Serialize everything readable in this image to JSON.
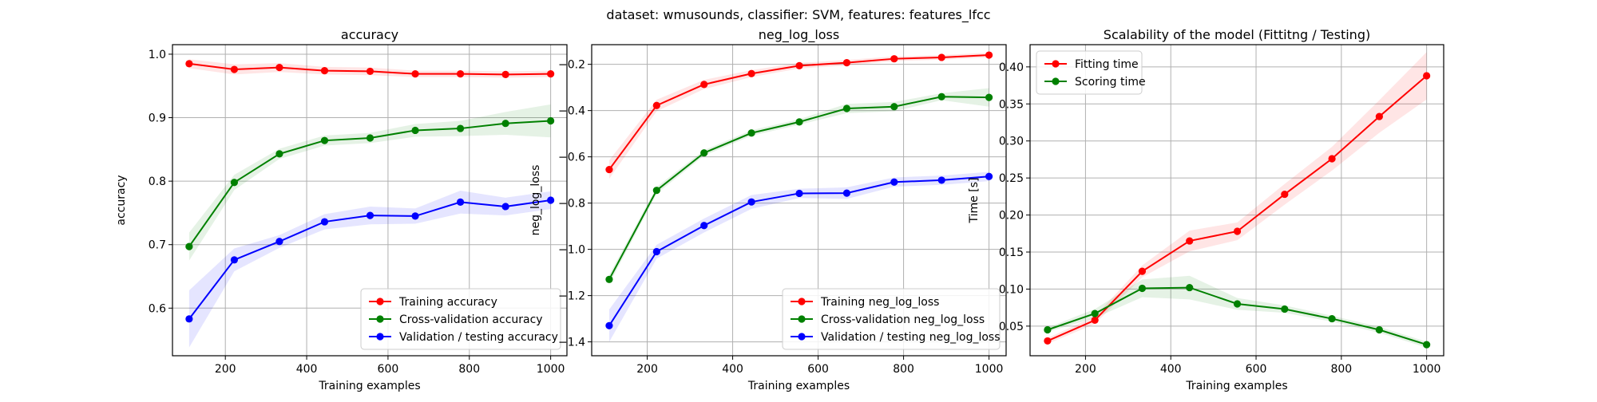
{
  "figure": {
    "suptitle": "dataset: wmusounds, classifier: SVM, features: features_lfcc"
  },
  "colors": {
    "train": "#ff0000",
    "cv": "#008000",
    "test": "#0000ff",
    "grid": "#b0b0b0"
  },
  "chart_data": [
    {
      "type": "line",
      "title": "accuracy",
      "xlabel": "Training examples",
      "ylabel": "accuracy",
      "xlim": [
        70,
        1040
      ],
      "ylim": [
        0.525,
        1.015
      ],
      "xticks": [
        200,
        400,
        600,
        800,
        1000
      ],
      "yticks": [
        0.6,
        0.7,
        0.8,
        0.9,
        1.0
      ],
      "ytick_labels": [
        "0.6",
        "0.7",
        "0.8",
        "0.9",
        "1.0"
      ],
      "grid": true,
      "legend": "lower right",
      "x": [
        111,
        222,
        333,
        444,
        556,
        667,
        778,
        889,
        1000
      ],
      "series": [
        {
          "name": "Training accuracy",
          "color": "#ff0000",
          "values": [
            0.985,
            0.976,
            0.979,
            0.974,
            0.973,
            0.969,
            0.969,
            0.968,
            0.969
          ],
          "band": [
            0.007,
            0.008,
            0.007,
            0.006,
            0.006,
            0.005,
            0.005,
            0.005,
            0.005
          ]
        },
        {
          "name": "Cross-validation accuracy",
          "color": "#008000",
          "values": [
            0.697,
            0.798,
            0.843,
            0.864,
            0.868,
            0.88,
            0.883,
            0.891,
            0.895
          ],
          "band": [
            0.022,
            0.012,
            0.008,
            0.008,
            0.008,
            0.01,
            0.012,
            0.018,
            0.026
          ]
        },
        {
          "name": "Validation / testing accuracy",
          "color": "#0000ff",
          "values": [
            0.583,
            0.676,
            0.705,
            0.736,
            0.746,
            0.745,
            0.767,
            0.76,
            0.77
          ],
          "band": [
            0.045,
            0.018,
            0.01,
            0.012,
            0.014,
            0.012,
            0.018,
            0.014,
            0.014
          ]
        }
      ]
    },
    {
      "type": "line",
      "title": "neg_log_loss",
      "xlabel": "Training examples",
      "ylabel": "neg_log_loss",
      "xlim": [
        70,
        1040
      ],
      "ylim": [
        -1.46,
        -0.115
      ],
      "xticks": [
        200,
        400,
        600,
        800,
        1000
      ],
      "yticks": [
        -1.4,
        -1.2,
        -1.0,
        -0.8,
        -0.6,
        -0.4,
        -0.2
      ],
      "ytick_labels": [
        "−1.4",
        "−1.2",
        "−1.0",
        "−0.8",
        "−0.6",
        "−0.4",
        "−0.2"
      ],
      "grid": true,
      "legend": "lower right",
      "x": [
        111,
        222,
        333,
        444,
        556,
        667,
        778,
        889,
        1000
      ],
      "series": [
        {
          "name": "Training neg_log_loss",
          "color": "#ff0000",
          "values": [
            -0.655,
            -0.378,
            -0.287,
            -0.24,
            -0.206,
            -0.193,
            -0.176,
            -0.17,
            -0.16
          ],
          "band": [
            0.04,
            0.025,
            0.02,
            0.015,
            0.012,
            0.012,
            0.01,
            0.01,
            0.01
          ]
        },
        {
          "name": "Cross-validation neg_log_loss",
          "color": "#008000",
          "values": [
            -1.13,
            -0.745,
            -0.583,
            -0.497,
            -0.449,
            -0.391,
            -0.383,
            -0.34,
            -0.343
          ],
          "band": [
            0.02,
            0.015,
            0.012,
            0.012,
            0.012,
            0.02,
            0.02,
            0.015,
            0.04
          ]
        },
        {
          "name": "Validation / testing neg_log_loss",
          "color": "#0000ff",
          "values": [
            -1.33,
            -1.01,
            -0.897,
            -0.795,
            -0.758,
            -0.757,
            -0.709,
            -0.701,
            -0.685
          ],
          "band": [
            0.07,
            0.03,
            0.03,
            0.03,
            0.02,
            0.025,
            0.02,
            0.02,
            0.02
          ]
        }
      ]
    },
    {
      "type": "line",
      "title": "Scalability of the model (Fittitng / Testing)",
      "xlabel": "Training examples",
      "ylabel": "Time [s]",
      "xlim": [
        70,
        1040
      ],
      "ylim": [
        0.01,
        0.43
      ],
      "xticks": [
        200,
        400,
        600,
        800,
        1000
      ],
      "yticks": [
        0.05,
        0.1,
        0.15,
        0.2,
        0.25,
        0.3,
        0.35,
        0.4
      ],
      "ytick_labels": [
        "0.05",
        "0.10",
        "0.15",
        "0.20",
        "0.25",
        "0.30",
        "0.35",
        "0.40"
      ],
      "grid": true,
      "legend": "upper left",
      "x": [
        111,
        222,
        333,
        444,
        556,
        667,
        778,
        889,
        1000
      ],
      "series": [
        {
          "name": "Fitting time",
          "color": "#ff0000",
          "values": [
            0.03,
            0.058,
            0.124,
            0.165,
            0.178,
            0.228,
            0.276,
            0.333,
            0.388
          ],
          "band": [
            0.004,
            0.005,
            0.008,
            0.014,
            0.012,
            0.014,
            0.016,
            0.022,
            0.032
          ]
        },
        {
          "name": "Scoring time",
          "color": "#008000",
          "values": [
            0.045,
            0.067,
            0.101,
            0.102,
            0.08,
            0.073,
            0.06,
            0.045,
            0.025
          ],
          "band": [
            0.003,
            0.006,
            0.012,
            0.016,
            0.008,
            0.005,
            0.004,
            0.004,
            0.004
          ]
        }
      ]
    }
  ]
}
